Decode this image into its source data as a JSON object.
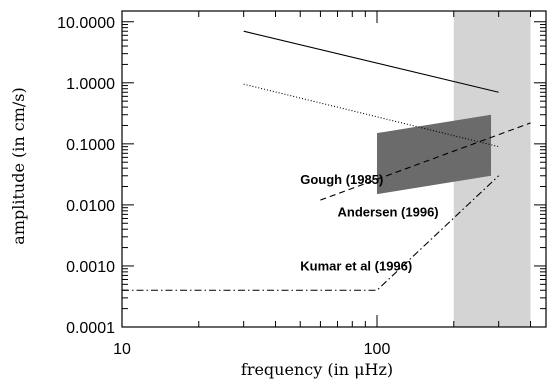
{
  "chart_data": {
    "type": "line",
    "title": "",
    "xlabel": "frequency (in μHz)",
    "ylabel": "amplitude (in cm/s)",
    "xscale": "log",
    "yscale": "log",
    "xlim": [
      10,
      460
    ],
    "ylim": [
      0.0001,
      15
    ],
    "x_ticks": [
      {
        "value": 10,
        "label": "10"
      },
      {
        "value": 100,
        "label": "100"
      }
    ],
    "y_ticks": [
      {
        "value": 10,
        "label": "10.0000"
      },
      {
        "value": 1,
        "label": "1.0000"
      },
      {
        "value": 0.1,
        "label": "0.1000"
      },
      {
        "value": 0.01,
        "label": "0.0100"
      },
      {
        "value": 0.001,
        "label": "0.0010"
      },
      {
        "value": 0.0001,
        "label": "0.0001"
      }
    ],
    "grid": false,
    "legend": "none",
    "shaded_band": {
      "x_from": 200,
      "x_to": 400,
      "color": "#d4d4d4"
    },
    "series": [
      {
        "style": "solid",
        "color": "#000000",
        "x": [
          30,
          300
        ],
        "y": [
          7.0,
          0.7
        ]
      },
      {
        "style": "dotted",
        "color": "#000000",
        "x": [
          30,
          300
        ],
        "y": [
          0.95,
          0.09
        ]
      },
      {
        "style": "dashed",
        "color": "#000000",
        "x": [
          60,
          400
        ],
        "y": [
          0.012,
          0.22
        ]
      },
      {
        "style": "dashdot",
        "color": "#000000",
        "x": [
          10,
          100,
          300
        ],
        "y": [
          0.0004,
          0.0004,
          0.03
        ]
      }
    ],
    "region": {
      "color": "#6b6b6b",
      "x": [
        100,
        280,
        280,
        100
      ],
      "y": [
        0.15,
        0.3,
        0.03,
        0.015
      ]
    },
    "annotations": [
      {
        "text": "Gough (1985)",
        "x": 50,
        "y": 0.022
      },
      {
        "text": "Andersen (1996)",
        "x": 70,
        "y": 0.0064
      },
      {
        "text": "Kumar et al (1996)",
        "x": 50,
        "y": 0.00084
      }
    ]
  }
}
